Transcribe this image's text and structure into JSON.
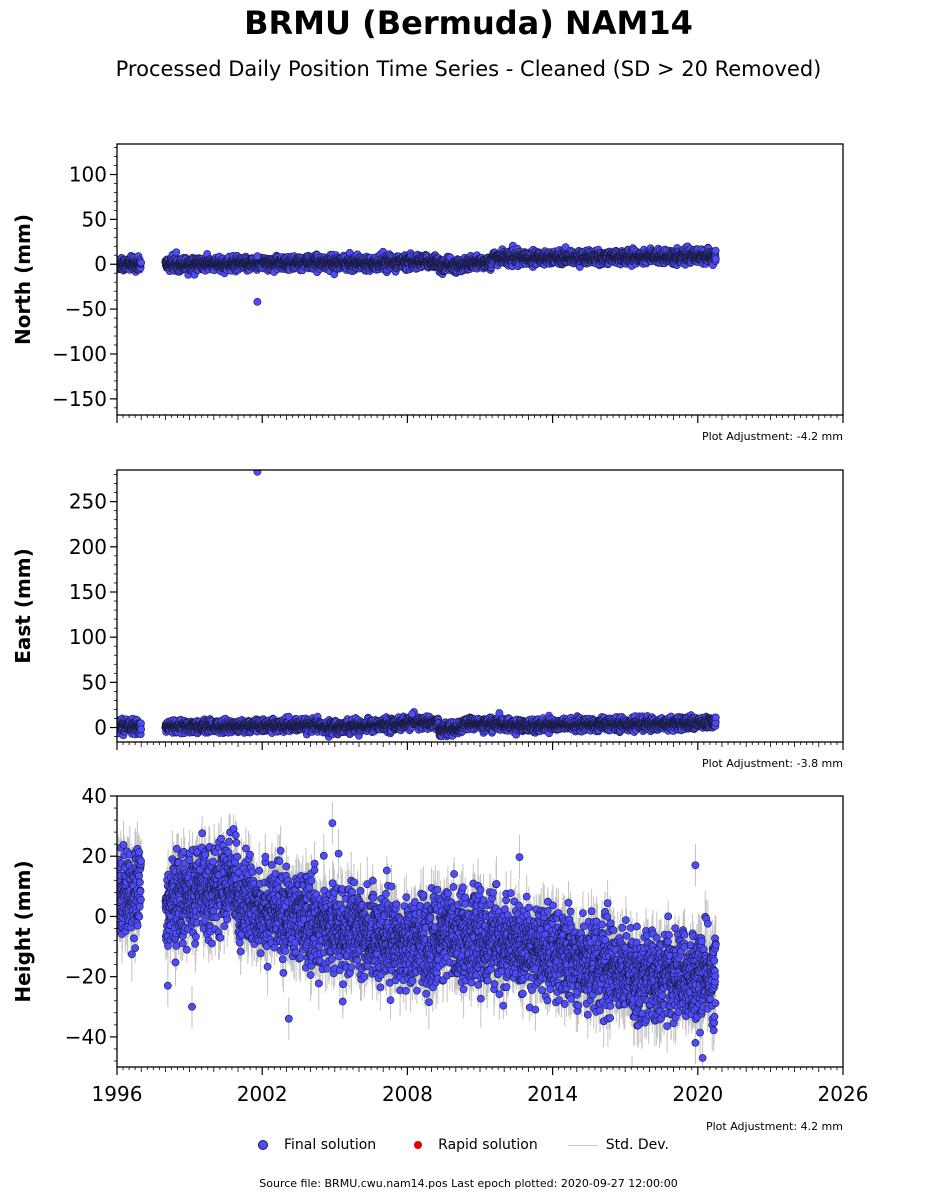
{
  "header": {
    "title": "BRMU (Bermuda) NAM14",
    "subtitle": "Processed Daily Position Time Series - Cleaned (SD > 20 Removed)"
  },
  "legend": {
    "final": "Final solution",
    "rapid": "Rapid solution",
    "std": "Std. Dev."
  },
  "footer": {
    "source": "Source file: BRMU.cwu.nam14.pos  Last epoch plotted: 2020-09-27 12:00:00"
  },
  "colors": {
    "final": "#4d4dff",
    "final_edge": "#1a1a40",
    "rapid": "#e00000",
    "std": "#b4b4b4"
  },
  "chart_data": [
    {
      "type": "scatter",
      "panel": "north",
      "ylabel": "North (mm)",
      "ylim": [
        -168,
        134
      ],
      "yticks": [
        100,
        50,
        0,
        -50,
        -100,
        -150
      ],
      "xlim": [
        1996,
        2026
      ],
      "adjustment": "Plot Adjustment: -4.2 mm",
      "segments": [
        {
          "x0": 1996.0,
          "x1": 1997.0,
          "y0": 0,
          "y1": 0
        },
        {
          "x0": 1998.0,
          "x1": 2001.5,
          "y0": 0,
          "y1": 0
        },
        {
          "x0": 2001.5,
          "x1": 2005.0,
          "y0": 1,
          "y1": 2
        },
        {
          "x0": 2005.0,
          "x1": 2009.3,
          "y0": 1,
          "y1": 3
        },
        {
          "x0": 2009.3,
          "x1": 2010.5,
          "y0": -2,
          "y1": 0
        },
        {
          "x0": 2010.5,
          "x1": 2011.5,
          "y0": 0,
          "y1": 3
        },
        {
          "x0": 2011.5,
          "x1": 2016.9,
          "y0": 7,
          "y1": 8
        },
        {
          "x0": 2016.9,
          "x1": 2020.75,
          "y0": 8,
          "y1": 9
        }
      ],
      "outliers": [
        {
          "x": 2001.8,
          "y": -42
        },
        {
          "x": 2001.8,
          "y": 9
        }
      ],
      "noise": 3.5,
      "err": 3
    },
    {
      "type": "scatter",
      "panel": "east",
      "ylabel": "East (mm)",
      "ylim": [
        -16,
        285
      ],
      "yticks": [
        250,
        200,
        150,
        100,
        50,
        0
      ],
      "xlim": [
        1996,
        2026
      ],
      "adjustment": "Plot Adjustment: -3.8 mm",
      "segments": [
        {
          "x0": 1996.0,
          "x1": 1997.0,
          "y0": 1,
          "y1": 1
        },
        {
          "x0": 1998.0,
          "x1": 2004.5,
          "y0": 1,
          "y1": 2
        },
        {
          "x0": 2004.5,
          "x1": 2008.0,
          "y0": 0,
          "y1": 4
        },
        {
          "x0": 2008.0,
          "x1": 2009.3,
          "y0": 6,
          "y1": 5
        },
        {
          "x0": 2009.3,
          "x1": 2010.3,
          "y0": -3,
          "y1": 0
        },
        {
          "x0": 2010.3,
          "x1": 2012.0,
          "y0": 4,
          "y1": 4
        },
        {
          "x0": 2012.0,
          "x1": 2020.75,
          "y0": 2,
          "y1": 5
        }
      ],
      "outliers": [
        {
          "x": 2001.8,
          "y": 283
        },
        {
          "x": 2008.2,
          "y": 15
        },
        {
          "x": 2003.1,
          "y": 12
        }
      ],
      "noise": 3.2,
      "err": 4
    },
    {
      "type": "scatter",
      "panel": "height",
      "ylabel": "Height (mm)",
      "ylim": [
        -50,
        40
      ],
      "yticks": [
        40,
        20,
        0,
        -20,
        -40
      ],
      "xlim": [
        1996,
        2026
      ],
      "xticks": [
        1996,
        2002,
        2008,
        2014,
        2020,
        2026
      ],
      "adjustment": "Plot Adjustment: 4.2 mm",
      "segments": [
        {
          "x0": 1996.0,
          "x1": 1997.0,
          "y0": 8,
          "y1": 8
        },
        {
          "x0": 1998.0,
          "x1": 2001.0,
          "y0": 4,
          "y1": 12
        },
        {
          "x0": 2001.0,
          "x1": 2005.0,
          "y0": 5,
          "y1": -4
        },
        {
          "x0": 2005.0,
          "x1": 2009.3,
          "y0": -4,
          "y1": -10
        },
        {
          "x0": 2009.3,
          "x1": 2016.9,
          "y0": -5,
          "y1": -17
        },
        {
          "x0": 2016.9,
          "x1": 2020.75,
          "y0": -20,
          "y1": -20
        }
      ],
      "outliers": [
        {
          "x": 2004.9,
          "y": 31
        },
        {
          "x": 2019.9,
          "y": 17
        },
        {
          "x": 2020.2,
          "y": -47
        },
        {
          "x": 2019.9,
          "y": -42
        },
        {
          "x": 2003.1,
          "y": -34
        },
        {
          "x": 1998.1,
          "y": -23
        },
        {
          "x": 1999.1,
          "y": -30
        }
      ],
      "noise": 7,
      "err": 7
    }
  ]
}
